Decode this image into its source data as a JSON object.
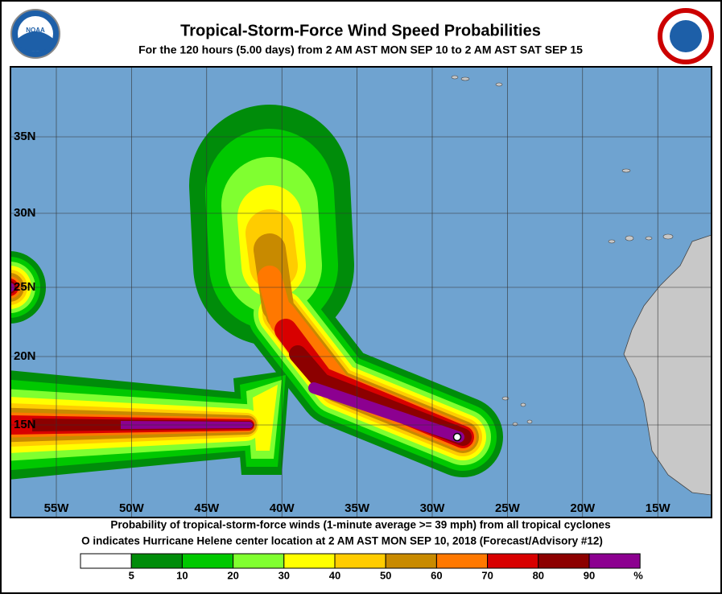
{
  "header": {
    "title": "Tropical-Storm-Force Wind Speed Probabilities",
    "subtitle": "For the 120 hours (5.00 days) from 2 AM AST MON SEP 10 to 2 AM AST SAT SEP 15",
    "logo_text": "NOAA"
  },
  "map": {
    "lat_labels": [
      "35N",
      "30N",
      "25N",
      "20N",
      "15N"
    ],
    "lon_labels": [
      "55W",
      "50W",
      "45W",
      "40W",
      "35W",
      "30W",
      "25W",
      "20W",
      "15W"
    ]
  },
  "footer": {
    "lines": [
      "Probability of tropical-storm-force winds (1-minute average >= 39 mph) from all tropical cyclones",
      "O indicates Hurricane Helene center location at 2 AM AST MON SEP 10, 2018 (Forecast/Advisory #12)"
    ]
  },
  "legend": {
    "levels": [
      5,
      10,
      20,
      30,
      40,
      50,
      60,
      70,
      80,
      90
    ],
    "unit": "%",
    "colors": [
      "#ffffff",
      "#008c0a",
      "#00c800",
      "#80ff30",
      "#ffff00",
      "#ffcc00",
      "#c88a00",
      "#ff7800",
      "#d80000",
      "#8c0000",
      "#8c0090"
    ]
  }
}
